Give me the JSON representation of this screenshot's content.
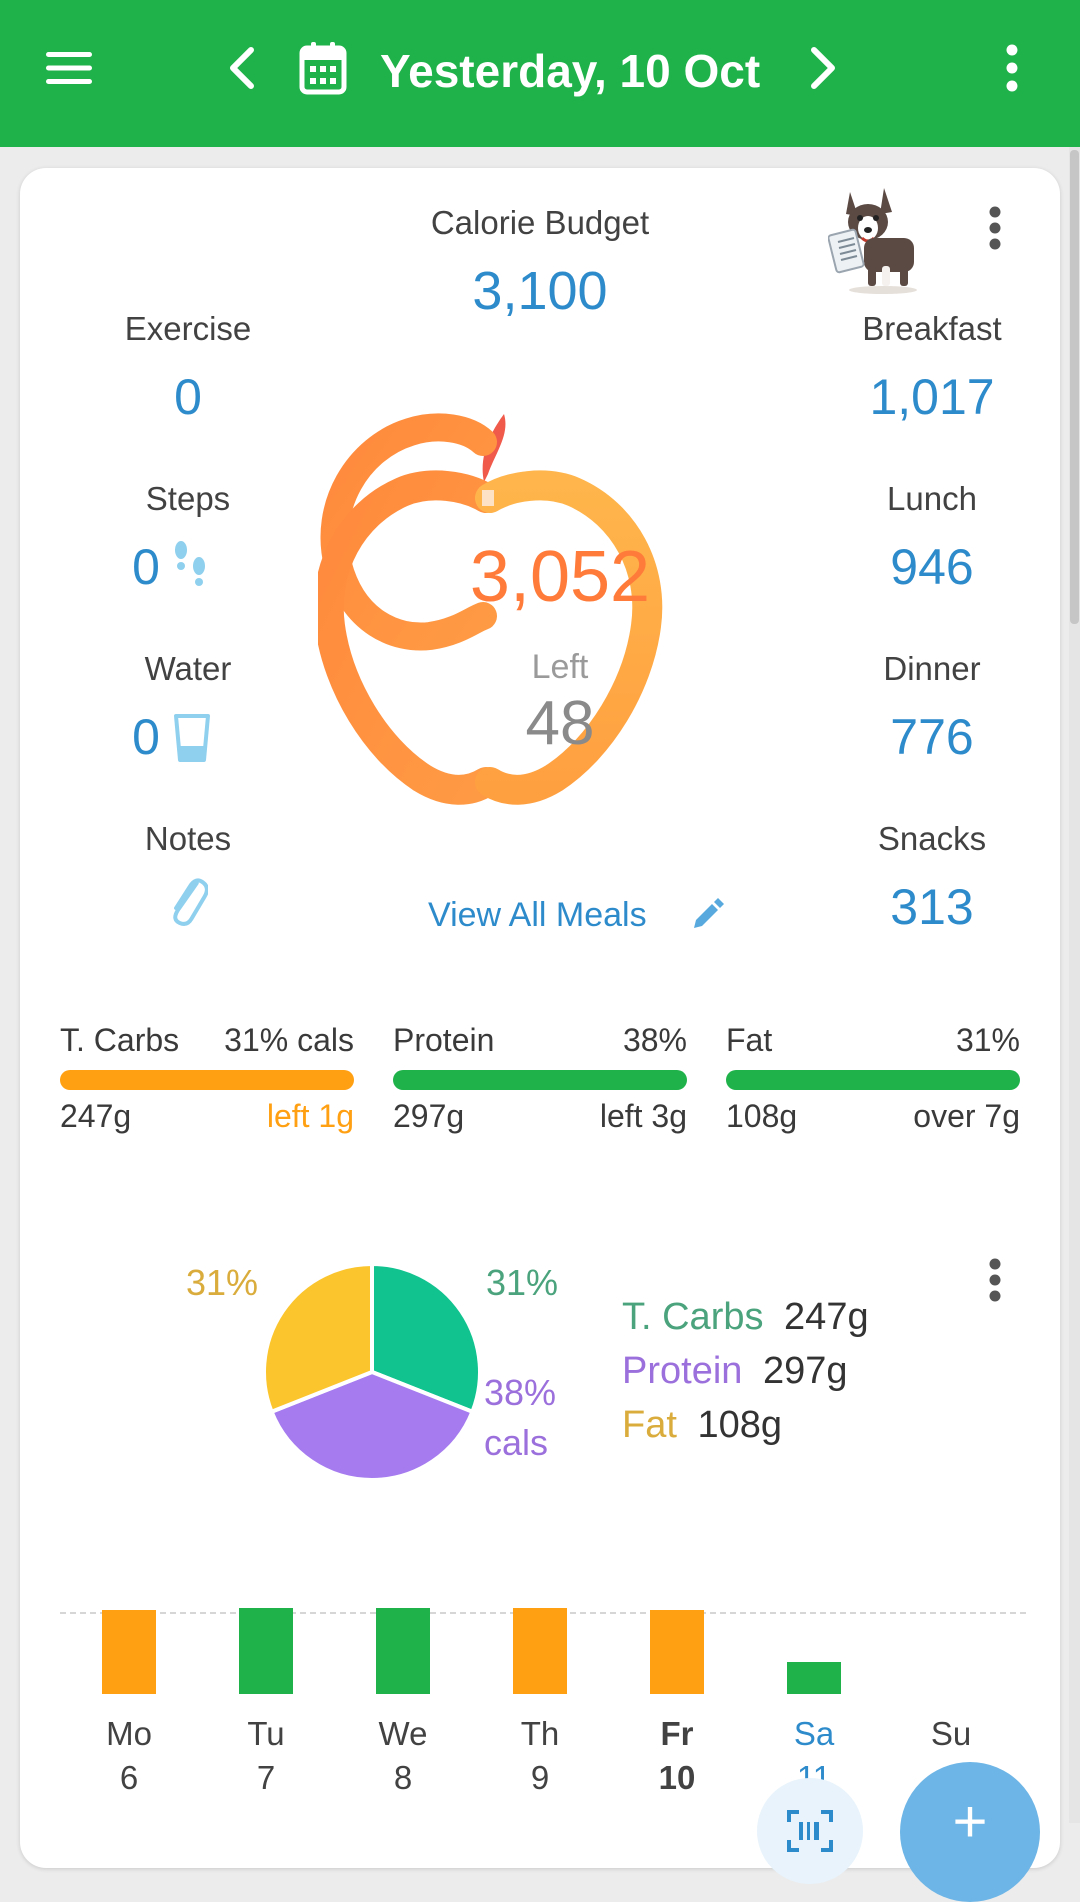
{
  "topbar": {
    "date_title": "Yesterday, 10 Oct",
    "menu_icon": "menu-icon",
    "prev_icon": "chevron-left-icon",
    "calendar_icon": "calendar-icon",
    "next_icon": "chevron-right-icon",
    "more_icon": "more-vert-icon",
    "color": "#1fb24a"
  },
  "summary": {
    "budget_label": "Calorie Budget",
    "budget_value": "3,100",
    "eaten_value": "3,052",
    "left_label": "Left",
    "left_value": "48",
    "view_all_label": "View All Meals",
    "left_column": [
      {
        "label": "Exercise",
        "value": "0"
      },
      {
        "label": "Steps",
        "value": "0"
      },
      {
        "label": "Water",
        "value": "0"
      },
      {
        "label": "Notes",
        "value": ""
      }
    ],
    "meals": [
      {
        "label": "Breakfast",
        "value": "1,017"
      },
      {
        "label": "Lunch",
        "value": "946"
      },
      {
        "label": "Dinner",
        "value": "776"
      },
      {
        "label": "Snacks",
        "value": "313"
      }
    ]
  },
  "macros": [
    {
      "name": "T. Carbs",
      "pct": "31% cals",
      "grams": "247g",
      "status": "left 1g",
      "bar_color": "#ff9f12",
      "status_color": "#ff9f12"
    },
    {
      "name": "Protein",
      "pct": "38%",
      "grams": "297g",
      "status": "left 3g",
      "bar_color": "#1fb24a",
      "status_color": "#3a3a3a"
    },
    {
      "name": "Fat",
      "pct": "31%",
      "grams": "108g",
      "status": "over 7g",
      "bar_color": "#1fb24a",
      "status_color": "#3a3a3a"
    }
  ],
  "pie": {
    "label_carbs": "31%",
    "label_fat": "31%",
    "label_protein": "38%",
    "label_cals": "cals",
    "legend": [
      {
        "name": "T. Carbs",
        "grams": "247g",
        "color": "#4aa37c"
      },
      {
        "name": "Protein",
        "grams": "297g",
        "color": "#9b6fdc"
      },
      {
        "name": "Fat",
        "grams": "108g",
        "color": "#d9ac3c"
      }
    ],
    "slices": [
      {
        "name": "T. Carbs",
        "percent": 31,
        "color": "#10c38f"
      },
      {
        "name": "Protein",
        "percent": 38,
        "color": "#a57bef"
      },
      {
        "name": "Fat",
        "percent": 31,
        "color": "#fbc52d"
      }
    ]
  },
  "week": {
    "days": [
      {
        "name": "Mo",
        "num": "6",
        "bar_level": 0.84,
        "color": "#ff9f12"
      },
      {
        "name": "Tu",
        "num": "7",
        "bar_level": 0.86,
        "color": "#1fb24a"
      },
      {
        "name": "We",
        "num": "8",
        "bar_level": 0.86,
        "color": "#1fb24a"
      },
      {
        "name": "Th",
        "num": "9",
        "bar_level": 0.86,
        "color": "#ff9f12"
      },
      {
        "name": "Fr",
        "num": "10",
        "bar_level": 0.84,
        "color": "#ff9f12"
      },
      {
        "name": "Sa",
        "num": "11",
        "bar_level": 0.32,
        "color": "#1fb24a"
      },
      {
        "name": "Su",
        "num": "",
        "bar_level": 0,
        "color": "#1fb24a"
      }
    ]
  },
  "fab": {
    "label": "+"
  }
}
